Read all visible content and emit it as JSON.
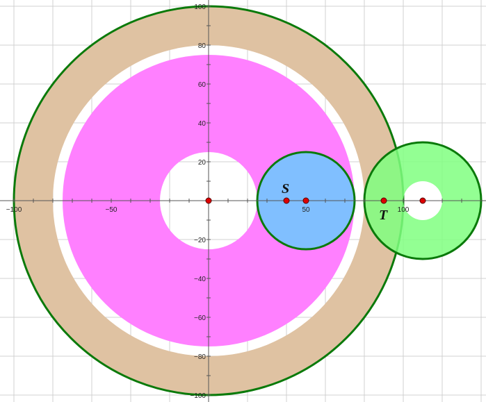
{
  "chart_data": {
    "type": "diagram",
    "xlim": [
      -107,
      141
    ],
    "ylim": [
      -102,
      103
    ],
    "grid": true,
    "x_ticks": [
      {
        "value": -100,
        "label": "−100"
      },
      {
        "value": -50,
        "label": "−50"
      },
      {
        "value": 50,
        "label": "50"
      },
      {
        "value": 100,
        "label": "100"
      }
    ],
    "y_ticks": [
      {
        "value": 100,
        "label": "100"
      },
      {
        "value": 80,
        "label": "80"
      },
      {
        "value": 60,
        "label": "60"
      },
      {
        "value": 40,
        "label": "40"
      },
      {
        "value": 20,
        "label": "20"
      },
      {
        "value": -20,
        "label": "−20"
      },
      {
        "value": -40,
        "label": "−40"
      },
      {
        "value": -60,
        "label": "−60"
      },
      {
        "value": -80,
        "label": "−80"
      },
      {
        "value": -100,
        "label": "−100"
      }
    ],
    "colors": {
      "tan_ring": "#dfc2a2",
      "magenta_disk": "#ff80ff",
      "blue_circle": "#80bfff",
      "green_circle": "#80ff80",
      "outline": "#0a7a0a",
      "point": "#dd0000"
    },
    "shapes": {
      "outer_ring": {
        "center": [
          0,
          0
        ],
        "r_outer": 100,
        "r_inner": 80
      },
      "magenta_annulus": {
        "center": [
          0,
          0
        ],
        "r_outer": 75,
        "r_inner": 25
      },
      "blue_circle": {
        "center": [
          50,
          0
        ],
        "r": 25
      },
      "green_annulus": {
        "center": [
          110,
          0
        ],
        "r_outer": 30,
        "r_inner": 10
      }
    },
    "points": [
      {
        "name": "origin",
        "x": 0,
        "y": 0,
        "label": ""
      },
      {
        "name": "s",
        "x": 40,
        "y": 0,
        "label": "S"
      },
      {
        "name": "blue-center",
        "x": 50,
        "y": 0,
        "label": ""
      },
      {
        "name": "t",
        "x": 90,
        "y": 0,
        "label": "T"
      },
      {
        "name": "green-center",
        "x": 110,
        "y": 0,
        "label": ""
      }
    ]
  }
}
